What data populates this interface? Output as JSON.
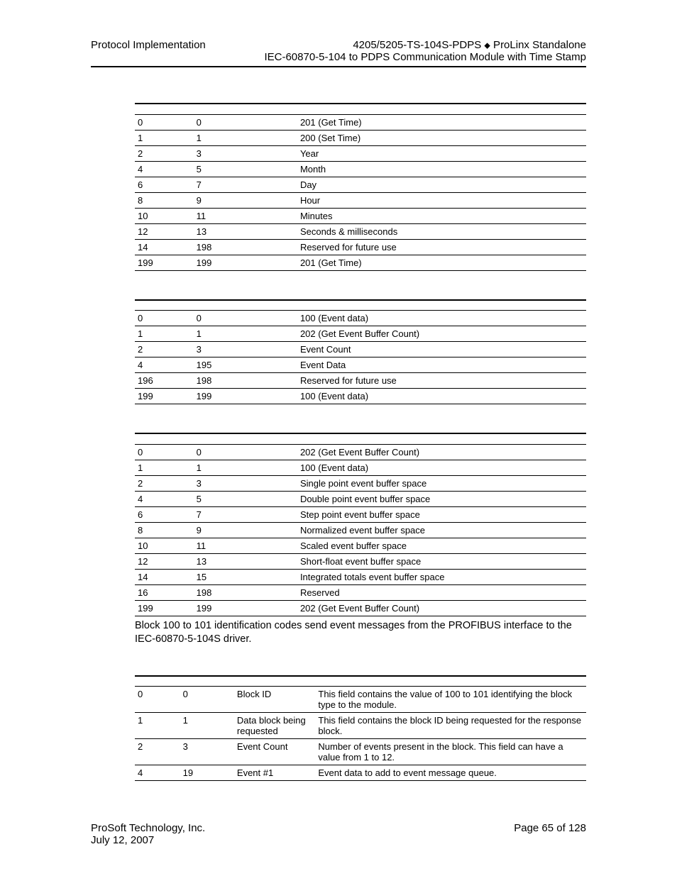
{
  "header": {
    "left": "Protocol Implementation",
    "right_line1_a": "4205/5205-TS-104S-PDPS ",
    "right_line1_b": " ProLinx Standalone",
    "right_line2": "IEC-60870-5-104 to PDPS Communication Module with Time Stamp"
  },
  "table1": {
    "rows": [
      [
        "0",
        "0",
        "201 (Get Time)"
      ],
      [
        "1",
        "1",
        "200 (Set Time)"
      ],
      [
        "2",
        "3",
        "Year"
      ],
      [
        "4",
        "5",
        "Month"
      ],
      [
        "6",
        "7",
        "Day"
      ],
      [
        "8",
        "9",
        "Hour"
      ],
      [
        "10",
        "11",
        "Minutes"
      ],
      [
        "12",
        "13",
        "Seconds & milliseconds"
      ],
      [
        "14",
        "198",
        "Reserved for future use"
      ],
      [
        "199",
        "199",
        "201 (Get Time)"
      ]
    ]
  },
  "table2": {
    "rows": [
      [
        "0",
        "0",
        "100 (Event data)"
      ],
      [
        "1",
        "1",
        "202 (Get Event Buffer Count)"
      ],
      [
        "2",
        "3",
        "Event Count"
      ],
      [
        "4",
        "195",
        "Event Data"
      ],
      [
        "196",
        "198",
        "Reserved for future use"
      ],
      [
        "199",
        "199",
        "100 (Event data)"
      ]
    ]
  },
  "table3": {
    "rows": [
      [
        "0",
        "0",
        "202 (Get Event Buffer Count)"
      ],
      [
        "1",
        "1",
        "100 (Event data)"
      ],
      [
        "2",
        "3",
        "Single point event buffer space"
      ],
      [
        "4",
        "5",
        "Double point event buffer space"
      ],
      [
        "6",
        "7",
        "Step point event buffer space"
      ],
      [
        "8",
        "9",
        "Normalized event buffer space"
      ],
      [
        "10",
        "11",
        "Scaled event buffer space"
      ],
      [
        "12",
        "13",
        "Short-float event buffer space"
      ],
      [
        "14",
        "15",
        "Integrated totals event buffer space"
      ],
      [
        "16",
        "198",
        "Reserved"
      ],
      [
        "199",
        "199",
        "202 (Get Event Buffer Count)"
      ]
    ],
    "note": "Block 100 to 101 identification codes send event messages from the PROFIBUS interface to the IEC-60870-5-104S driver."
  },
  "table4": {
    "rows": [
      [
        "0",
        "0",
        "Block ID",
        "This field contains the value of 100 to 101 identifying the block type to the module."
      ],
      [
        "1",
        "1",
        "Data block being requested",
        "This field contains the block ID being requested for the response block."
      ],
      [
        "2",
        "3",
        "Event Count",
        "Number of events present in the block. This field can have a value from 1 to 12."
      ],
      [
        "4",
        "19",
        "Event #1",
        "Event data to add to event message queue."
      ]
    ]
  },
  "footer": {
    "left_line1": "ProSoft Technology, Inc.",
    "left_line2": "July 12, 2007",
    "right": "Page 65 of 128"
  }
}
